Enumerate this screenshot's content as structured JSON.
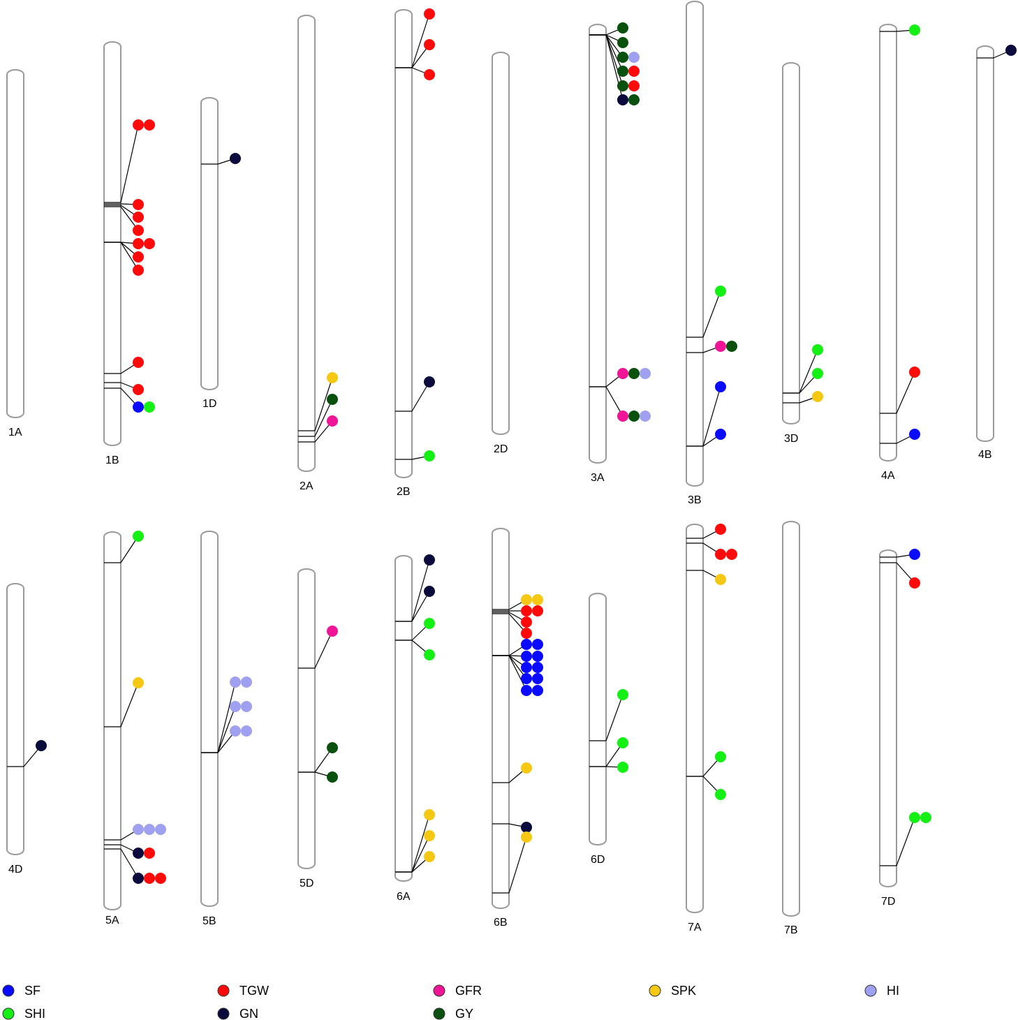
{
  "chromosomes": [
    "1A",
    "1B",
    "1D",
    "2A",
    "2B",
    "2D",
    "3A",
    "3B",
    "3D",
    "4A",
    "4B",
    "4D",
    "5A",
    "5B",
    "5D",
    "6A",
    "6B",
    "6D",
    "7A",
    "7B",
    "7D"
  ],
  "legend": [
    {
      "label": "SF",
      "color": "#0a0aff"
    },
    {
      "label": "SHI",
      "color": "#14f014"
    },
    {
      "label": "TGW",
      "color": "#ff0a0a"
    },
    {
      "label": "GN",
      "color": "#0a0a3c"
    },
    {
      "label": "GFR",
      "color": "#f01496"
    },
    {
      "label": "GY",
      "color": "#0a500f"
    },
    {
      "label": "SPK",
      "color": "#f5c814"
    },
    {
      "label": "HI",
      "color": "#a0a0f0"
    }
  ]
}
